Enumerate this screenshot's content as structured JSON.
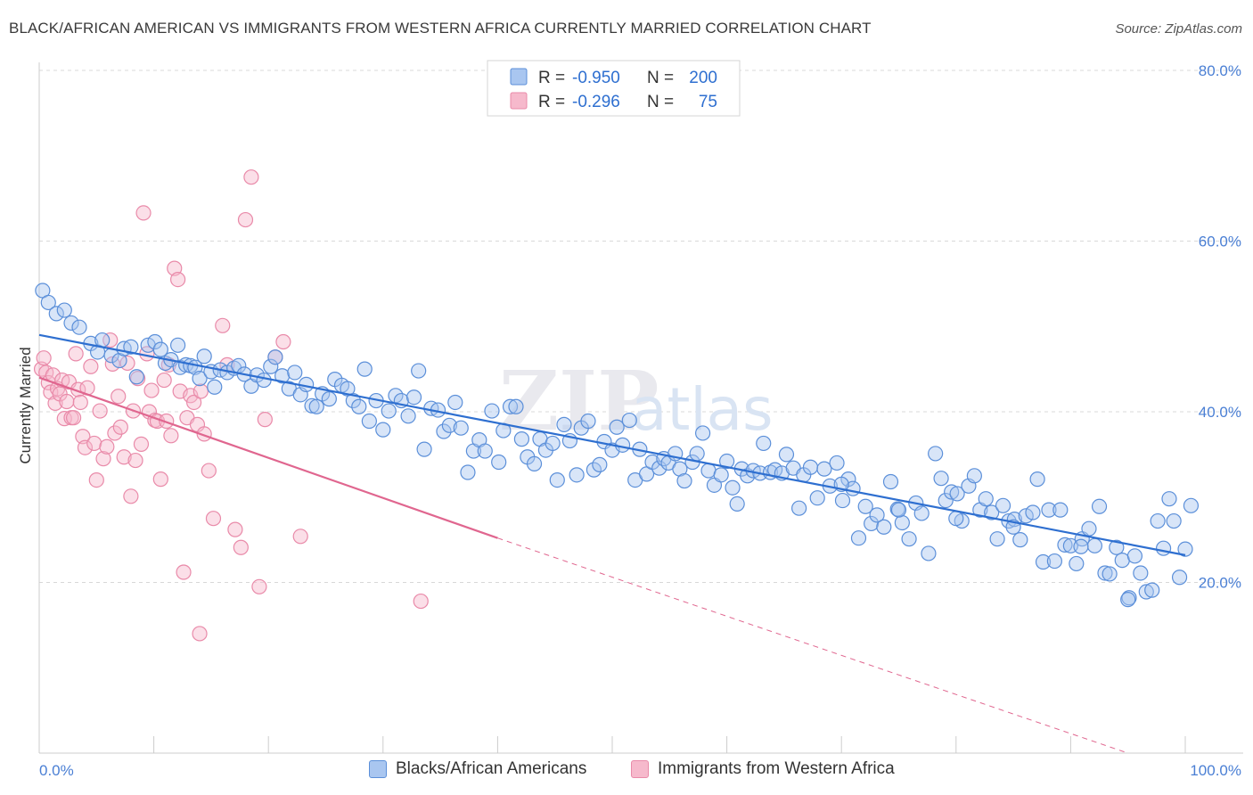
{
  "title": "BLACK/AFRICAN AMERICAN VS IMMIGRANTS FROM WESTERN AFRICA CURRENTLY MARRIED CORRELATION CHART",
  "source": "Source: ZipAtlas.com",
  "watermark": {
    "zip": "ZIP",
    "atlas": "atlas"
  },
  "colors": {
    "blue_fill": "#a9c6f0",
    "blue_stroke": "#5b8fd9",
    "blue_line": "#2e6fd0",
    "pink_fill": "#f6b9cc",
    "pink_stroke": "#e98aa9",
    "pink_line": "#e0668f",
    "axis_text": "#4a7fd4",
    "grid": "#d8d8d8"
  },
  "legend": {
    "rows": [
      {
        "r_label": "R =",
        "r_value": "-0.950",
        "n_label": "N =",
        "n_value": "200"
      },
      {
        "r_label": "R =",
        "r_value": "-0.296",
        "n_label": "N =",
        "n_value": "75"
      }
    ]
  },
  "bottom_legend": [
    {
      "label": "Blacks/African Americans"
    },
    {
      "label": "Immigrants from Western Africa"
    }
  ],
  "chart_data": {
    "type": "scatter",
    "title": "BLACK/AFRICAN AMERICAN VS IMMIGRANTS FROM WESTERN AFRICA CURRENTLY MARRIED CORRELATION CHART",
    "xlabel": "",
    "ylabel": "Currently Married",
    "xlim": [
      0,
      100
    ],
    "ylim": [
      0,
      80
    ],
    "x_tick_labels": [
      "0.0%",
      "100.0%"
    ],
    "y_ticks": [
      20,
      40,
      60,
      80
    ],
    "y_tick_labels": [
      "20.0%",
      "40.0%",
      "60.0%",
      "80.0%"
    ],
    "grid": true,
    "series": [
      {
        "name": "Blacks/African Americans",
        "R": -0.95,
        "N": 200,
        "trend": {
          "x": [
            0,
            100
          ],
          "y": [
            49.0,
            23.2
          ]
        },
        "points": [
          [
            0.3,
            54.2
          ],
          [
            0.8,
            52.8
          ],
          [
            1.5,
            51.5
          ],
          [
            2.2,
            51.9
          ],
          [
            2.8,
            50.4
          ],
          [
            3.5,
            49.9
          ],
          [
            4.5,
            48.0
          ],
          [
            5.1,
            47.0
          ],
          [
            5.5,
            48.4
          ],
          [
            6.3,
            46.6
          ],
          [
            7.0,
            46.0
          ],
          [
            7.4,
            47.4
          ],
          [
            8.0,
            47.6
          ],
          [
            8.5,
            44.1
          ],
          [
            9.5,
            47.8
          ],
          [
            10.1,
            48.2
          ],
          [
            10.6,
            47.3
          ],
          [
            11.0,
            45.7
          ],
          [
            11.5,
            46.1
          ],
          [
            12.1,
            47.8
          ],
          [
            12.3,
            45.2
          ],
          [
            12.8,
            45.5
          ],
          [
            13.2,
            45.4
          ],
          [
            13.6,
            45.2
          ],
          [
            14.0,
            43.9
          ],
          [
            14.4,
            46.5
          ],
          [
            15.0,
            44.7
          ],
          [
            15.3,
            42.9
          ],
          [
            15.8,
            44.9
          ],
          [
            16.4,
            44.6
          ],
          [
            17.0,
            45.1
          ],
          [
            17.4,
            45.4
          ],
          [
            17.9,
            44.4
          ],
          [
            18.5,
            43.0
          ],
          [
            19.0,
            44.3
          ],
          [
            19.6,
            43.7
          ],
          [
            20.2,
            45.3
          ],
          [
            20.6,
            46.4
          ],
          [
            21.2,
            44.2
          ],
          [
            21.8,
            42.7
          ],
          [
            22.3,
            44.6
          ],
          [
            22.8,
            42.0
          ],
          [
            23.3,
            43.2
          ],
          [
            23.8,
            40.7
          ],
          [
            24.2,
            40.6
          ],
          [
            24.7,
            42.1
          ],
          [
            25.3,
            41.5
          ],
          [
            25.8,
            43.8
          ],
          [
            26.4,
            43.1
          ],
          [
            26.9,
            42.7
          ],
          [
            27.4,
            41.3
          ],
          [
            27.9,
            40.6
          ],
          [
            28.4,
            45.0
          ],
          [
            28.8,
            38.9
          ],
          [
            29.4,
            41.3
          ],
          [
            30.0,
            37.9
          ],
          [
            30.5,
            40.1
          ],
          [
            31.1,
            41.9
          ],
          [
            31.6,
            41.3
          ],
          [
            32.2,
            39.5
          ],
          [
            32.7,
            41.7
          ],
          [
            33.1,
            44.8
          ],
          [
            33.6,
            35.6
          ],
          [
            34.2,
            40.4
          ],
          [
            34.8,
            40.2
          ],
          [
            35.3,
            37.7
          ],
          [
            35.8,
            38.4
          ],
          [
            36.3,
            41.1
          ],
          [
            36.8,
            38.1
          ],
          [
            37.4,
            32.9
          ],
          [
            37.9,
            35.4
          ],
          [
            38.4,
            36.7
          ],
          [
            38.9,
            35.4
          ],
          [
            39.5,
            40.1
          ],
          [
            40.1,
            34.1
          ],
          [
            40.5,
            37.8
          ],
          [
            41.1,
            40.6
          ],
          [
            41.6,
            40.6
          ],
          [
            42.1,
            36.8
          ],
          [
            42.6,
            34.7
          ],
          [
            43.2,
            33.9
          ],
          [
            43.7,
            36.8
          ],
          [
            44.2,
            35.5
          ],
          [
            44.8,
            36.3
          ],
          [
            45.2,
            32.0
          ],
          [
            45.8,
            38.5
          ],
          [
            46.3,
            36.6
          ],
          [
            46.9,
            32.6
          ],
          [
            47.3,
            38.1
          ],
          [
            47.9,
            38.9
          ],
          [
            48.4,
            33.2
          ],
          [
            48.9,
            33.8
          ],
          [
            49.3,
            36.5
          ],
          [
            50.0,
            35.5
          ],
          [
            50.4,
            38.2
          ],
          [
            50.9,
            36.1
          ],
          [
            51.5,
            39.0
          ],
          [
            52.0,
            32.0
          ],
          [
            52.4,
            35.6
          ],
          [
            53.0,
            32.7
          ],
          [
            53.5,
            34.1
          ],
          [
            54.1,
            33.4
          ],
          [
            54.5,
            34.5
          ],
          [
            54.9,
            34.0
          ],
          [
            55.5,
            35.1
          ],
          [
            55.9,
            33.3
          ],
          [
            56.3,
            31.9
          ],
          [
            57.0,
            34.1
          ],
          [
            57.4,
            35.1
          ],
          [
            57.9,
            37.5
          ],
          [
            58.4,
            33.1
          ],
          [
            58.9,
            31.4
          ],
          [
            59.5,
            32.6
          ],
          [
            60.0,
            34.2
          ],
          [
            60.5,
            31.1
          ],
          [
            60.9,
            29.2
          ],
          [
            61.3,
            33.3
          ],
          [
            61.8,
            32.5
          ],
          [
            62.3,
            33.1
          ],
          [
            62.9,
            32.8
          ],
          [
            63.2,
            36.3
          ],
          [
            63.8,
            32.9
          ],
          [
            64.2,
            33.2
          ],
          [
            64.8,
            32.8
          ],
          [
            65.2,
            35.0
          ],
          [
            65.8,
            33.4
          ],
          [
            66.3,
            28.7
          ],
          [
            66.7,
            32.6
          ],
          [
            67.3,
            33.5
          ],
          [
            67.9,
            29.9
          ],
          [
            68.5,
            33.3
          ],
          [
            69.0,
            31.3
          ],
          [
            69.6,
            34.0
          ],
          [
            70.1,
            29.6
          ],
          [
            70.6,
            32.1
          ],
          [
            71.0,
            31.0
          ],
          [
            71.5,
            25.2
          ],
          [
            72.1,
            28.9
          ],
          [
            72.6,
            26.9
          ],
          [
            73.1,
            27.9
          ],
          [
            73.7,
            26.5
          ],
          [
            74.3,
            31.8
          ],
          [
            74.9,
            28.6
          ],
          [
            75.3,
            27.0
          ],
          [
            75.9,
            25.1
          ],
          [
            76.5,
            29.3
          ],
          [
            77.0,
            28.1
          ],
          [
            77.6,
            23.4
          ],
          [
            78.2,
            35.1
          ],
          [
            78.7,
            32.2
          ],
          [
            79.1,
            29.6
          ],
          [
            79.6,
            30.6
          ],
          [
            80.1,
            30.4
          ],
          [
            80.5,
            27.2
          ],
          [
            81.1,
            31.3
          ],
          [
            81.6,
            32.5
          ],
          [
            82.1,
            28.5
          ],
          [
            82.6,
            29.8
          ],
          [
            83.1,
            28.2
          ],
          [
            83.6,
            25.1
          ],
          [
            84.1,
            29.0
          ],
          [
            84.6,
            27.2
          ],
          [
            85.1,
            27.4
          ],
          [
            85.6,
            25.0
          ],
          [
            86.1,
            27.8
          ],
          [
            86.7,
            28.2
          ],
          [
            87.1,
            32.1
          ],
          [
            87.6,
            22.4
          ],
          [
            88.1,
            28.5
          ],
          [
            88.6,
            22.5
          ],
          [
            89.1,
            28.5
          ],
          [
            89.5,
            24.4
          ],
          [
            90.0,
            24.3
          ],
          [
            90.5,
            22.2
          ],
          [
            91.0,
            25.1
          ],
          [
            91.6,
            26.3
          ],
          [
            92.1,
            24.3
          ],
          [
            92.5,
            28.9
          ],
          [
            93.0,
            21.1
          ],
          [
            93.4,
            21.0
          ],
          [
            94.0,
            24.1
          ],
          [
            94.5,
            22.6
          ],
          [
            95.1,
            18.2
          ],
          [
            95.6,
            23.1
          ],
          [
            96.1,
            21.1
          ],
          [
            96.6,
            18.9
          ],
          [
            97.1,
            19.1
          ],
          [
            97.6,
            27.2
          ],
          [
            98.1,
            24.0
          ],
          [
            98.6,
            29.8
          ],
          [
            99.0,
            27.2
          ],
          [
            99.5,
            20.6
          ],
          [
            100.0,
            23.9
          ],
          [
            100.5,
            29.0
          ],
          [
            95.0,
            18.0
          ],
          [
            90.9,
            24.2
          ],
          [
            85.0,
            26.5
          ],
          [
            80.0,
            27.5
          ],
          [
            75.0,
            28.5
          ],
          [
            70.0,
            31.5
          ]
        ]
      },
      {
        "name": "Immigrants from Western Africa",
        "R": -0.296,
        "N": 75,
        "trend_solid": {
          "x": [
            0,
            40
          ],
          "y": [
            44.0,
            25.2
          ]
        },
        "trend_dashed": {
          "x": [
            40,
            95
          ],
          "y": [
            25.2,
            0.0
          ]
        },
        "points": [
          [
            0.2,
            45.0
          ],
          [
            0.4,
            46.3
          ],
          [
            0.6,
            44.6
          ],
          [
            0.8,
            43.4
          ],
          [
            1.0,
            42.3
          ],
          [
            1.2,
            44.3
          ],
          [
            1.4,
            41.0
          ],
          [
            1.6,
            42.7
          ],
          [
            1.8,
            42.1
          ],
          [
            2.0,
            43.7
          ],
          [
            2.2,
            39.2
          ],
          [
            2.4,
            41.2
          ],
          [
            2.6,
            43.5
          ],
          [
            2.8,
            39.3
          ],
          [
            3.0,
            39.3
          ],
          [
            3.2,
            46.8
          ],
          [
            3.4,
            42.6
          ],
          [
            3.6,
            41.1
          ],
          [
            3.8,
            37.1
          ],
          [
            4.0,
            35.8
          ],
          [
            4.2,
            42.8
          ],
          [
            4.5,
            45.3
          ],
          [
            4.8,
            36.3
          ],
          [
            5.0,
            32.0
          ],
          [
            5.3,
            40.1
          ],
          [
            5.6,
            34.5
          ],
          [
            5.9,
            35.9
          ],
          [
            6.2,
            48.4
          ],
          [
            6.4,
            45.6
          ],
          [
            6.6,
            37.5
          ],
          [
            6.9,
            41.8
          ],
          [
            7.1,
            38.2
          ],
          [
            7.4,
            34.7
          ],
          [
            7.7,
            45.7
          ],
          [
            8.0,
            30.1
          ],
          [
            8.2,
            40.1
          ],
          [
            8.4,
            34.3
          ],
          [
            8.6,
            43.9
          ],
          [
            8.9,
            36.2
          ],
          [
            9.1,
            63.3
          ],
          [
            9.4,
            46.8
          ],
          [
            9.6,
            40.0
          ],
          [
            9.8,
            42.5
          ],
          [
            10.1,
            39.0
          ],
          [
            10.3,
            38.9
          ],
          [
            10.6,
            32.1
          ],
          [
            10.9,
            43.7
          ],
          [
            11.1,
            38.9
          ],
          [
            11.3,
            45.5
          ],
          [
            11.5,
            37.2
          ],
          [
            11.8,
            56.8
          ],
          [
            12.1,
            55.5
          ],
          [
            12.3,
            42.4
          ],
          [
            12.6,
            21.2
          ],
          [
            12.9,
            39.3
          ],
          [
            13.2,
            41.9
          ],
          [
            13.5,
            41.1
          ],
          [
            13.8,
            38.5
          ],
          [
            14.1,
            42.4
          ],
          [
            14.4,
            37.4
          ],
          [
            14.8,
            33.1
          ],
          [
            15.2,
            27.5
          ],
          [
            16.0,
            50.1
          ],
          [
            16.4,
            45.5
          ],
          [
            17.1,
            26.2
          ],
          [
            17.6,
            24.1
          ],
          [
            18.0,
            62.5
          ],
          [
            18.5,
            67.5
          ],
          [
            19.2,
            19.5
          ],
          [
            19.7,
            39.1
          ],
          [
            20.6,
            46.4
          ],
          [
            21.3,
            48.2
          ],
          [
            22.8,
            25.4
          ],
          [
            33.3,
            17.8
          ],
          [
            14.0,
            14.0
          ]
        ]
      }
    ]
  }
}
